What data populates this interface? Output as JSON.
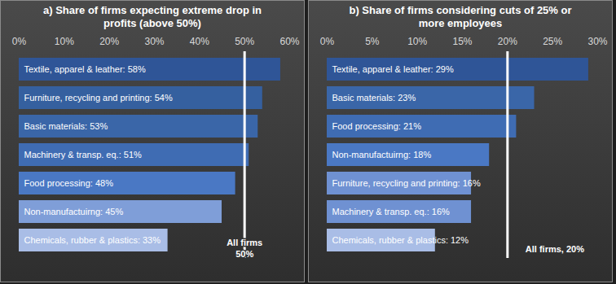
{
  "chart_data": [
    {
      "type": "bar",
      "orientation": "horizontal",
      "title": "a) Share of firms expecting extreme drop in profits (above 50%)",
      "categories": [
        "Textile, apparel & leather",
        "Furniture, recycling and printing",
        "Basic materials",
        "Machinery & transp. eq.",
        "Food processing",
        "Non-manufactuirng",
        "Chemicals, rubber & plastics"
      ],
      "values": [
        58,
        54,
        53,
        51,
        48,
        45,
        33
      ],
      "value_labels": [
        "Textile, apparel & leather: 58%",
        "Furniture, recycling and printing: 54%",
        "Basic materials: 53%",
        "Machinery & transp. eq.: 51%",
        "Food processing: 48%",
        "Non-manufactuirng: 45%",
        "Chemicals, rubber & plastics: 33%"
      ],
      "colors": [
        "#2f5597",
        "#35609f",
        "#3a66a8",
        "#3f6cb3",
        "#4a78c4",
        "#7f9ed8",
        "#a9bde6"
      ],
      "xlim": [
        0,
        60
      ],
      "xticks": [
        {
          "value": 0,
          "label": "0%"
        },
        {
          "value": 10,
          "label": "10%"
        },
        {
          "value": 20,
          "label": "20%"
        },
        {
          "value": 30,
          "label": "30%"
        },
        {
          "value": 40,
          "label": "40%"
        },
        {
          "value": 50,
          "label": "50%"
        },
        {
          "value": 60,
          "label": "60%"
        }
      ],
      "data_labels": true,
      "tick_labels": "x",
      "grid": false,
      "annotations": [
        {
          "x": 50,
          "text": "All firms\n50%"
        }
      ]
    },
    {
      "type": "bar",
      "orientation": "horizontal",
      "title": "b) Share of firms considering cuts of 25% or more employees",
      "categories": [
        "Textile, apparel & leather",
        "Basic materials",
        "Food processing",
        "Non-manufactuirng",
        "Furniture, recycling and printing",
        "Machinery & transp. eq.",
        "Chemicals, rubber & plastics"
      ],
      "values": [
        29,
        23,
        21,
        18,
        16,
        16,
        12
      ],
      "value_labels": [
        "Textile, apparel & leather: 29%",
        "Basic materials: 23%",
        "Food processing: 21%",
        "Non-manufactuirng: 18%",
        "Furniture, recycling and printing: 16%",
        "Machinery & transp. eq.: 16%",
        "Chemicals, rubber & plastics: 12%"
      ],
      "colors": [
        "#2f5597",
        "#3a66a8",
        "#3f6cb3",
        "#4a78c4",
        "#6f91d2",
        "#6f91d2",
        "#a9bde6"
      ],
      "xlim": [
        0,
        30
      ],
      "xticks": [
        {
          "value": 0,
          "label": "0%"
        },
        {
          "value": 5,
          "label": "5%"
        },
        {
          "value": 10,
          "label": "10%"
        },
        {
          "value": 15,
          "label": "15%"
        },
        {
          "value": 20,
          "label": "20%"
        },
        {
          "value": 25,
          "label": "25%"
        },
        {
          "value": 30,
          "label": "30%"
        }
      ],
      "data_labels": true,
      "tick_labels": "x",
      "grid": false,
      "annotations": [
        {
          "x": 20,
          "text": "All firms, 20%"
        }
      ]
    }
  ]
}
